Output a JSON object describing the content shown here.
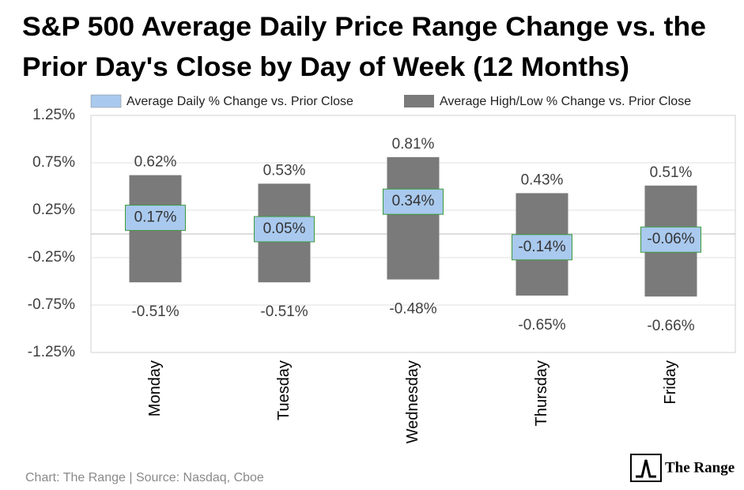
{
  "chart_data": {
    "type": "range-bar",
    "title": [
      "S&P 500 Average Daily Price Range Change vs. the",
      "Prior Day's Close by Day of Week (12 Months)"
    ],
    "categories": [
      "Monday",
      "Tuesday",
      "Wednesday",
      "Thursday",
      "Friday"
    ],
    "series": [
      {
        "name": "Average Daily % Change vs. Prior Close",
        "color": "#a9c9ee",
        "border": "#3c9a3c",
        "values": [
          0.17,
          0.05,
          0.34,
          -0.14,
          -0.06
        ],
        "value_labels": [
          "0.17%",
          "0.05%",
          "0.34%",
          "-0.14%",
          "-0.06%"
        ]
      },
      {
        "name": "Average High/Low % Change vs. Prior Close",
        "color": "#7a7a7a",
        "high": [
          0.62,
          0.53,
          0.81,
          0.43,
          0.51
        ],
        "high_labels": [
          "0.62%",
          "0.53%",
          "0.81%",
          "0.43%",
          "0.51%"
        ],
        "low": [
          -0.51,
          -0.51,
          -0.48,
          -0.65,
          -0.66
        ],
        "low_labels": [
          "-0.51%",
          "-0.51%",
          "-0.48%",
          "-0.65%",
          "-0.66%"
        ]
      }
    ],
    "ylim": [
      -1.25,
      1.25
    ],
    "yticks": [
      {
        "value": -1.25,
        "label": "-1.25%"
      },
      {
        "value": -0.75,
        "label": "-0.75%"
      },
      {
        "value": -0.25,
        "label": "-0.25%"
      },
      {
        "value": 0.25,
        "label": "0.25%"
      },
      {
        "value": 0.75,
        "label": "0.75%"
      },
      {
        "value": 1.25,
        "label": "1.25%"
      }
    ],
    "grid": true,
    "source": "Chart: The Range | Source: Nasdaq, Cboe",
    "logo": "The Range"
  }
}
